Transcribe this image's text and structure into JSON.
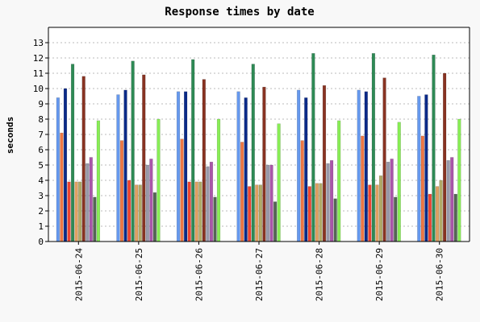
{
  "chart_data": {
    "type": "bar",
    "title": "Response times by date",
    "xlabel": "",
    "ylabel": "seconds",
    "ylim": [
      0,
      14
    ],
    "yticks": [
      0,
      1,
      2,
      3,
      4,
      5,
      6,
      7,
      8,
      9,
      10,
      11,
      12,
      13
    ],
    "grid": true,
    "categories": [
      "2015-06-24",
      "2015-06-25",
      "2015-06-26",
      "2015-06-27",
      "2015-06-28",
      "2015-06-29",
      "2015-06-30"
    ],
    "series": [
      {
        "color": "#6699ee",
        "values": [
          9.4,
          9.6,
          9.8,
          9.8,
          9.9,
          9.9,
          9.5
        ]
      },
      {
        "color": "#ee7744",
        "values": [
          7.1,
          6.6,
          6.7,
          6.5,
          6.6,
          6.9,
          6.9
        ]
      },
      {
        "color": "#0a2a88",
        "values": [
          10.0,
          9.9,
          9.8,
          9.4,
          9.4,
          9.8,
          9.6
        ]
      },
      {
        "color": "#ee4433",
        "values": [
          3.9,
          4.0,
          3.9,
          3.6,
          3.6,
          3.7,
          3.1
        ]
      },
      {
        "color": "#2e8a55",
        "values": [
          11.6,
          11.8,
          11.9,
          11.6,
          12.3,
          12.3,
          12.2
        ]
      },
      {
        "color": "#e0a060",
        "values": [
          3.9,
          3.7,
          3.9,
          3.7,
          3.8,
          3.7,
          3.6
        ]
      },
      {
        "color": "#b0aa66",
        "values": [
          3.9,
          3.7,
          3.9,
          3.7,
          3.8,
          4.3,
          4.0
        ]
      },
      {
        "color": "#883322",
        "values": [
          10.8,
          10.9,
          10.6,
          10.1,
          10.2,
          10.7,
          11.0
        ]
      },
      {
        "color": "#9999aa",
        "values": [
          5.1,
          5.0,
          4.9,
          5.0,
          5.1,
          5.2,
          5.3
        ]
      },
      {
        "color": "#aa55aa",
        "values": [
          5.5,
          5.4,
          5.2,
          5.0,
          5.3,
          5.4,
          5.5
        ]
      },
      {
        "color": "#556655",
        "values": [
          2.9,
          3.2,
          2.9,
          2.6,
          2.8,
          2.9,
          3.1
        ]
      },
      {
        "color": "#88ee55",
        "values": [
          7.9,
          8.0,
          8.0,
          7.7,
          7.9,
          7.8,
          8.0
        ]
      }
    ]
  }
}
